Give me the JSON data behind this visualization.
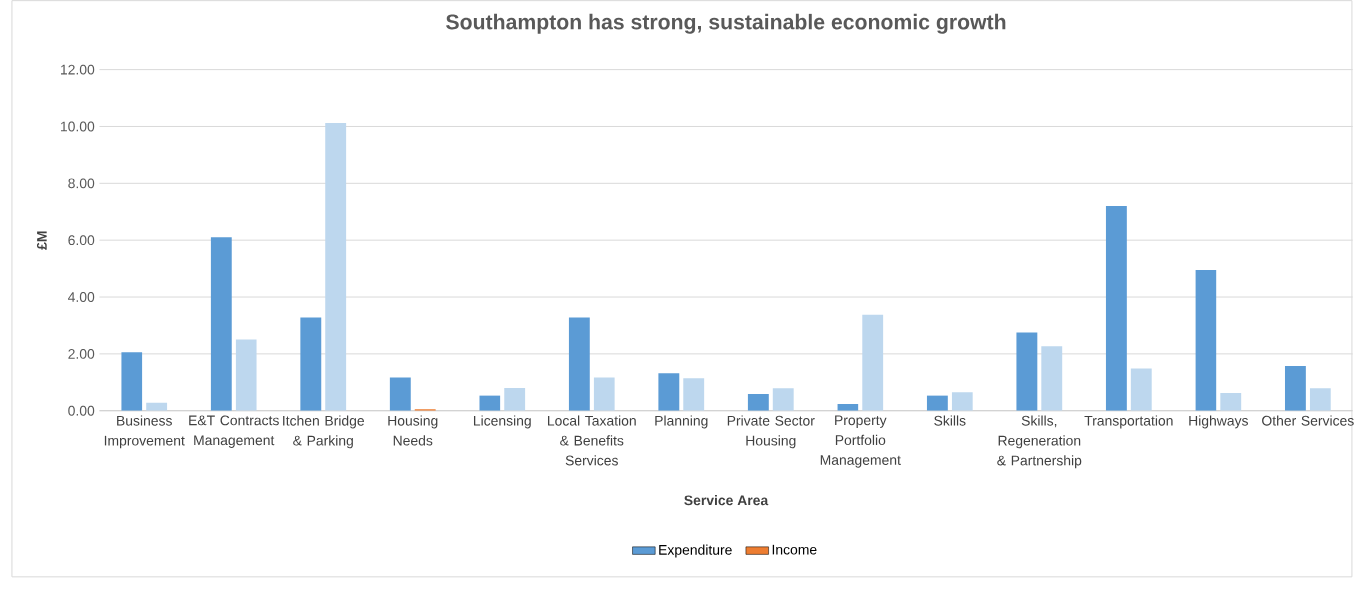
{
  "chart_data": {
    "type": "bar",
    "title": "Southampton has strong, sustainable economic growth",
    "xlabel": "Service Area",
    "ylabel": "£M",
    "categories": [
      "Business Improvement",
      "E&T Contracts Management",
      "Itchen Bridge & Parking",
      "Housing Needs",
      "Licensing",
      "Local Taxation & Benefits Services",
      "Planning",
      "Private Sector Housing",
      "Property Portfolio Management",
      "Skills",
      "Skills, Regeneration & Partnership",
      "Transportation",
      "Highways",
      "Other Services"
    ],
    "series": [
      {
        "name": "Expenditure",
        "color": "#5b9bd5",
        "values": [
          2.06,
          6.1,
          3.28,
          1.17,
          0.54,
          3.28,
          1.32,
          0.59,
          0.24,
          0.54,
          2.75,
          7.2,
          4.95,
          1.57
        ]
      },
      {
        "name": "Income",
        "color": "#ed7d31",
        "colors": [
          "#bdd7ee",
          "#bdd7ee",
          "#bdd7ee",
          "#ed7d31",
          "#bdd7ee",
          "#bdd7ee",
          "#bdd7ee",
          "#bdd7ee",
          "#bdd7ee",
          "#bdd7ee",
          "#bdd7ee",
          "#bdd7ee",
          "#bdd7ee",
          "#bdd7ee"
        ],
        "values": [
          0.28,
          2.51,
          10.12,
          0.05,
          0.8,
          1.17,
          1.14,
          0.79,
          3.38,
          0.65,
          2.27,
          1.49,
          0.62,
          0.79
        ]
      }
    ],
    "ylim": [
      0,
      12
    ],
    "yticks": [
      {
        "value": 0,
        "label": "0.00"
      },
      {
        "value": 2,
        "label": "2.00"
      },
      {
        "value": 4,
        "label": "4.00"
      },
      {
        "value": 6,
        "label": "6.00"
      },
      {
        "value": 8,
        "label": "8.00"
      },
      {
        "value": 10,
        "label": "10.00"
      },
      {
        "value": 12,
        "label": "12.00"
      }
    ],
    "grid": "y",
    "legend": "bottom"
  }
}
